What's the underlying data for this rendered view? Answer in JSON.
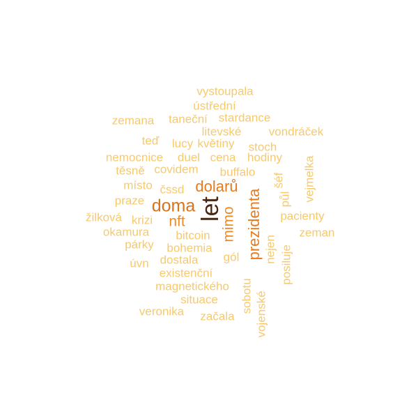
{
  "words": {
    "vystoupala": "vystoupala",
    "ustredni": "ústřední",
    "zemana": "zemana",
    "tanecni": "taneční",
    "stardance": "stardance",
    "litevske": "litevské",
    "vondracek": "vondráček",
    "ted": "teď",
    "lucy": "lucy",
    "kvetiny": "květiny",
    "stoch": "stoch",
    "nemocnice": "nemocnice",
    "duel": "duel",
    "cena": "cena",
    "hodiny": "hodiny",
    "vejmelka": "vejmelka",
    "tesne": "těsně",
    "covidem": "covidem",
    "buffalo": "buffalo",
    "sef": "šéf",
    "misto": "místo",
    "cssd": "čssd",
    "dolaru": "dolarů",
    "prezidenta": "prezidenta",
    "pul": "půl",
    "praze": "praze",
    "doma": "doma",
    "let": "let",
    "zilkova": "žilková",
    "krizi": "krizi",
    "nft": "nft",
    "pacienty": "pacienty",
    "mimo": "mimo",
    "okamura": "okamura",
    "bitcoin": "bitcoin",
    "zeman": "zeman",
    "parky": "párky",
    "bohemia": "bohemia",
    "nejen": "nejen",
    "posiluje": "posiluje",
    "gol": "gól",
    "uvn": "úvn",
    "dostala": "dostala",
    "existencni": "existenční",
    "magneticke": "magnetického",
    "sobotu": "sobotu",
    "situace": "situace",
    "vojenske": "vojenské",
    "veronika": "veronika",
    "zacala": "začala"
  },
  "colors": {
    "rare": "#f7c96d",
    "mid": "#ef8a22",
    "high": "#d9731c",
    "top": "#4a240e"
  }
}
